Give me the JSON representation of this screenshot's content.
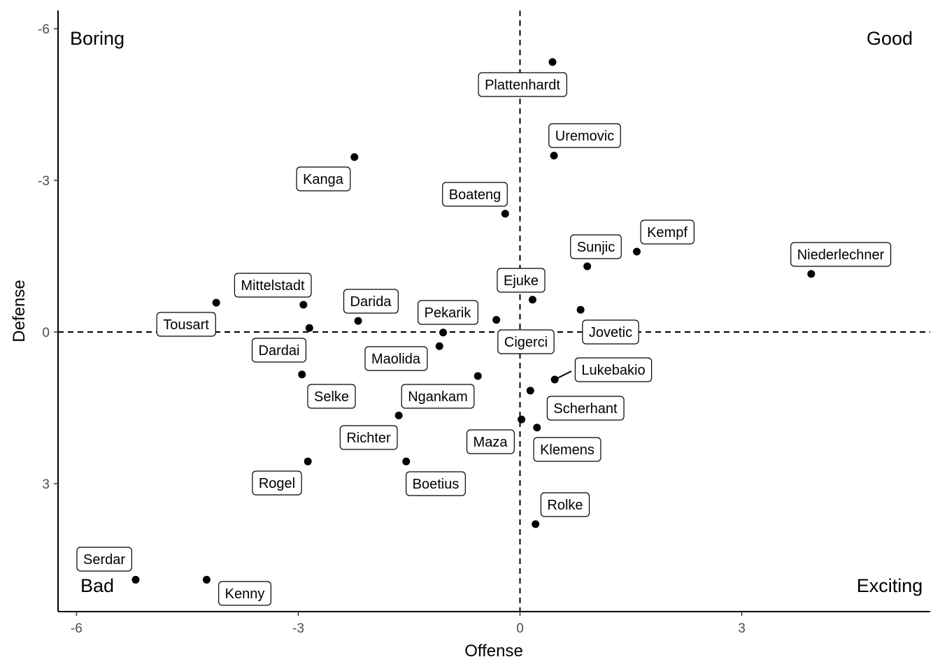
{
  "chart_data": {
    "type": "scatter",
    "title": "",
    "xlabel": "Offense",
    "ylabel": "Defense",
    "xlim": [
      -6.25,
      5.55
    ],
    "ylim": [
      -6.36,
      5.53
    ],
    "y_reversed": true,
    "xticks": [
      -6,
      -3,
      0,
      3
    ],
    "yticks": [
      -6,
      -3,
      0,
      3
    ],
    "reference_lines": {
      "x": 0,
      "y": 0,
      "style": "dashed"
    },
    "quadrant_labels": {
      "top_left": "Boring",
      "top_right": "Good",
      "bottom_left": "Bad",
      "bottom_right": "Exciting"
    },
    "grid": false,
    "points": [
      {
        "name": "Plattenhardt",
        "x": 0.44,
        "y": -5.34
      },
      {
        "name": "Uremovic",
        "x": 0.46,
        "y": -3.49
      },
      {
        "name": "Kanga",
        "x": -2.24,
        "y": -3.46
      },
      {
        "name": "Boateng",
        "x": -0.2,
        "y": -2.34
      },
      {
        "name": "Kempf",
        "x": 1.58,
        "y": -1.59
      },
      {
        "name": "Sunjic",
        "x": 0.91,
        "y": -1.3
      },
      {
        "name": "Niederlechner",
        "x": 3.94,
        "y": -1.15
      },
      {
        "name": "Mittelstadt",
        "x": -2.93,
        "y": -0.54
      },
      {
        "name": "Tousart",
        "x": -4.11,
        "y": -0.58
      },
      {
        "name": "Ejuke",
        "x": 0.17,
        "y": -0.64
      },
      {
        "name": "Jovetic",
        "x": 0.82,
        "y": -0.44
      },
      {
        "name": "Darida",
        "x": -2.19,
        "y": -0.22
      },
      {
        "name": "Pekarik",
        "x": -1.04,
        "y": 0.01
      },
      {
        "name": "Cigerci",
        "x": -0.32,
        "y": -0.24
      },
      {
        "name": "Dardai",
        "x": -2.85,
        "y": -0.08
      },
      {
        "name": "Maolida",
        "x": -1.09,
        "y": 0.28
      },
      {
        "name": "Selke",
        "x": -2.95,
        "y": 0.84
      },
      {
        "name": "Ngankam",
        "x": -0.57,
        "y": 0.87
      },
      {
        "name": "Lukebakio",
        "x": 0.47,
        "y": 0.94
      },
      {
        "name": "Scherhant",
        "x": 0.14,
        "y": 1.16
      },
      {
        "name": "Richter",
        "x": -1.64,
        "y": 1.65
      },
      {
        "name": "Maza",
        "x": 0.02,
        "y": 1.73
      },
      {
        "name": "Klemens",
        "x": 0.23,
        "y": 1.89
      },
      {
        "name": "Rogel",
        "x": -2.87,
        "y": 2.56
      },
      {
        "name": "Boetius",
        "x": -1.54,
        "y": 2.56
      },
      {
        "name": "Rolke",
        "x": 0.21,
        "y": 3.8
      },
      {
        "name": "Serdar",
        "x": -5.2,
        "y": 4.9
      },
      {
        "name": "Kenny",
        "x": -4.24,
        "y": 4.9
      }
    ]
  }
}
